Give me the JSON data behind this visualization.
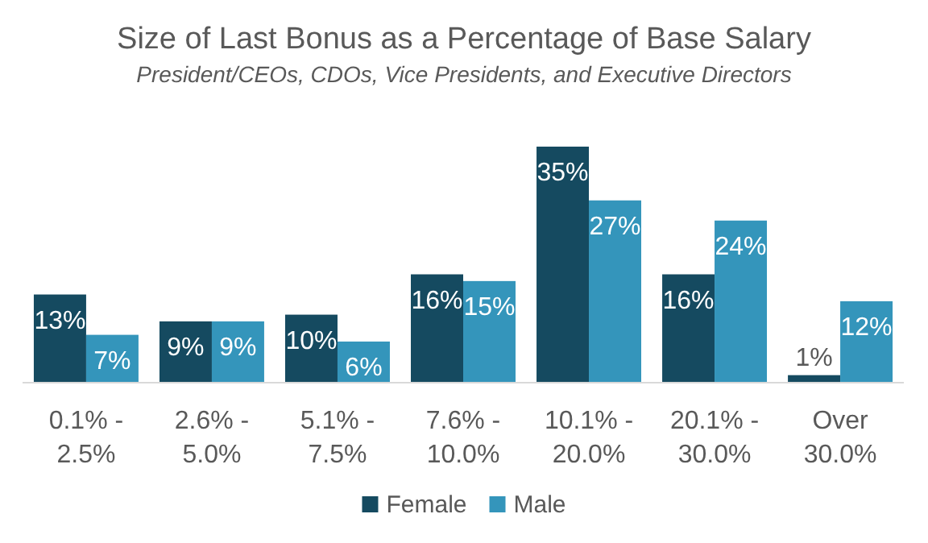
{
  "chart_data": {
    "type": "bar",
    "title": "Size of Last Bonus as a Percentage of Base Salary",
    "subtitle": "President/CEOs, CDOs, Vice Presidents, and Executive Directors",
    "categories": [
      "0.1% - 2.5%",
      "2.6% - 5.0%",
      "5.1% - 7.5%",
      "7.6% - 10.0%",
      "10.1% - 20.0%",
      "20.1% - 30.0%",
      "Over 30.0%"
    ],
    "series": [
      {
        "name": "Female",
        "color": "#154a60",
        "values": [
          13,
          9,
          10,
          16,
          35,
          16,
          1
        ],
        "value_labels": [
          "13%",
          "9%",
          "10%",
          "16%",
          "35%",
          "16%",
          "1%"
        ]
      },
      {
        "name": "Male",
        "color": "#3495bb",
        "values": [
          7,
          9,
          6,
          15,
          27,
          24,
          12
        ],
        "value_labels": [
          "7%",
          "9%",
          "6%",
          "15%",
          "27%",
          "24%",
          "12%"
        ]
      }
    ],
    "legend": "bottom"
  }
}
